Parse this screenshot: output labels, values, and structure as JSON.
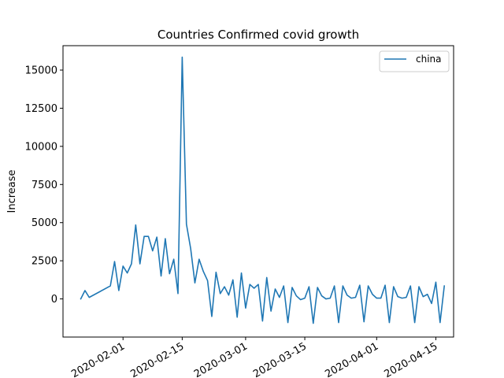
{
  "chart_data": {
    "type": "line",
    "title": "Countries Confirmed covid growth",
    "xlabel": "",
    "ylabel": "Increase",
    "x_ticks": [
      "2020-02-01",
      "2020-02-15",
      "2020-03-01",
      "2020-03-15",
      "2020-04-01",
      "2020-04-15"
    ],
    "y_ticks": [
      0,
      2500,
      5000,
      7500,
      10000,
      12500,
      15000
    ],
    "y_tick_labels": [
      "0",
      "2500",
      "5000",
      "7500",
      "10000",
      "12500",
      "15000"
    ],
    "xlim": [
      "2020-01-20",
      "2020-04-17"
    ],
    "ylim": [
      -2500,
      16600
    ],
    "grid": false,
    "legend_position": "top-right",
    "series": [
      {
        "name": "china",
        "color": "#1f77b4",
        "points": [
          [
            "2020-01-22",
            0
          ],
          [
            "2020-01-23",
            550
          ],
          [
            "2020-01-24",
            100
          ],
          [
            "2020-01-29",
            850
          ],
          [
            "2020-01-30",
            2450
          ],
          [
            "2020-01-31",
            550
          ],
          [
            "2020-02-01",
            2150
          ],
          [
            "2020-02-02",
            1700
          ],
          [
            "2020-02-03",
            2300
          ],
          [
            "2020-02-04",
            4850
          ],
          [
            "2020-02-05",
            2300
          ],
          [
            "2020-02-06",
            4100
          ],
          [
            "2020-02-07",
            4100
          ],
          [
            "2020-02-08",
            3150
          ],
          [
            "2020-02-09",
            4050
          ],
          [
            "2020-02-10",
            1500
          ],
          [
            "2020-02-11",
            3950
          ],
          [
            "2020-02-12",
            1650
          ],
          [
            "2020-02-13",
            2600
          ],
          [
            "2020-02-14",
            350
          ],
          [
            "2020-02-15",
            15850
          ],
          [
            "2020-02-16",
            4900
          ],
          [
            "2020-02-17",
            3300
          ],
          [
            "2020-02-18",
            1050
          ],
          [
            "2020-02-19",
            2600
          ],
          [
            "2020-02-20",
            1800
          ],
          [
            "2020-02-21",
            1200
          ],
          [
            "2020-02-22",
            -1150
          ],
          [
            "2020-02-23",
            1750
          ],
          [
            "2020-02-24",
            350
          ],
          [
            "2020-02-25",
            800
          ],
          [
            "2020-02-26",
            250
          ],
          [
            "2020-02-27",
            1250
          ],
          [
            "2020-02-28",
            -1200
          ],
          [
            "2020-02-29",
            1700
          ],
          [
            "2020-03-01",
            -600
          ],
          [
            "2020-03-02",
            950
          ],
          [
            "2020-03-03",
            700
          ],
          [
            "2020-03-04",
            950
          ],
          [
            "2020-03-05",
            -1450
          ],
          [
            "2020-03-06",
            1400
          ],
          [
            "2020-03-07",
            -800
          ],
          [
            "2020-03-08",
            650
          ],
          [
            "2020-03-09",
            100
          ],
          [
            "2020-03-10",
            850
          ],
          [
            "2020-03-11",
            -1550
          ],
          [
            "2020-03-12",
            750
          ],
          [
            "2020-03-13",
            200
          ],
          [
            "2020-03-14",
            -50
          ],
          [
            "2020-03-15",
            50
          ],
          [
            "2020-03-16",
            800
          ],
          [
            "2020-03-17",
            -1600
          ],
          [
            "2020-03-18",
            750
          ],
          [
            "2020-03-19",
            200
          ],
          [
            "2020-03-20",
            0
          ],
          [
            "2020-03-21",
            50
          ],
          [
            "2020-03-22",
            850
          ],
          [
            "2020-03-23",
            -1550
          ],
          [
            "2020-03-24",
            850
          ],
          [
            "2020-03-25",
            250
          ],
          [
            "2020-03-26",
            50
          ],
          [
            "2020-03-27",
            100
          ],
          [
            "2020-03-28",
            900
          ],
          [
            "2020-03-29",
            -1500
          ],
          [
            "2020-03-30",
            850
          ],
          [
            "2020-03-31",
            300
          ],
          [
            "2020-04-01",
            50
          ],
          [
            "2020-04-02",
            50
          ],
          [
            "2020-04-03",
            900
          ],
          [
            "2020-04-04",
            -1550
          ],
          [
            "2020-04-05",
            800
          ],
          [
            "2020-04-06",
            150
          ],
          [
            "2020-04-07",
            50
          ],
          [
            "2020-04-08",
            100
          ],
          [
            "2020-04-09",
            850
          ],
          [
            "2020-04-10",
            -1550
          ],
          [
            "2020-04-11",
            800
          ],
          [
            "2020-04-12",
            150
          ],
          [
            "2020-04-13",
            300
          ],
          [
            "2020-04-14",
            -300
          ],
          [
            "2020-04-15",
            1100
          ],
          [
            "2020-04-16",
            -1550
          ],
          [
            "2020-04-17",
            850
          ]
        ]
      }
    ]
  }
}
